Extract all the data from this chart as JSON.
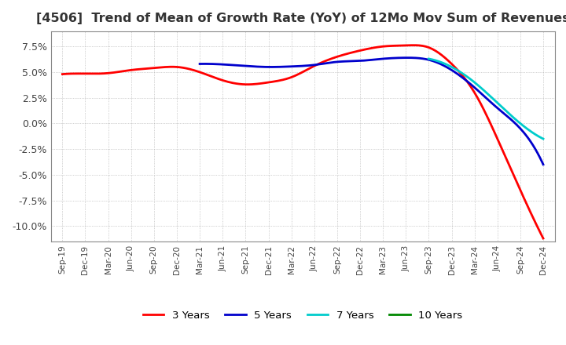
{
  "title": "[4506]  Trend of Mean of Growth Rate (YoY) of 12Mo Mov Sum of Revenues",
  "title_fontsize": 11.5,
  "background_color": "#ffffff",
  "plot_background_color": "#ffffff",
  "grid_color": "#aaaaaa",
  "ylim": [
    -11.5,
    9.0
  ],
  "yticks": [
    7.5,
    5.0,
    2.5,
    0.0,
    -2.5,
    -5.0,
    -7.5,
    -10.0
  ],
  "legend_labels": [
    "3 Years",
    "5 Years",
    "7 Years",
    "10 Years"
  ],
  "legend_colors": [
    "#ff0000",
    "#0000cc",
    "#00cccc",
    "#008800"
  ],
  "x_labels": [
    "Sep-19",
    "Dec-19",
    "Mar-20",
    "Jun-20",
    "Sep-20",
    "Dec-20",
    "Mar-21",
    "Jun-21",
    "Sep-21",
    "Dec-21",
    "Mar-22",
    "Jun-22",
    "Sep-22",
    "Dec-22",
    "Mar-23",
    "Jun-23",
    "Sep-23",
    "Dec-23",
    "Mar-24",
    "Jun-24",
    "Sep-24",
    "Dec-24"
  ],
  "series": {
    "3y": [
      4.8,
      4.85,
      4.9,
      5.2,
      5.4,
      5.5,
      5.0,
      4.2,
      3.8,
      4.0,
      4.5,
      5.6,
      6.5,
      7.1,
      7.5,
      7.6,
      7.4,
      5.8,
      3.0,
      -1.5,
      -6.5,
      -11.2
    ],
    "5y": [
      null,
      null,
      null,
      null,
      null,
      null,
      5.8,
      5.75,
      5.6,
      5.5,
      5.55,
      5.7,
      6.0,
      6.1,
      6.3,
      6.4,
      6.2,
      5.2,
      3.5,
      1.5,
      -0.5,
      -4.0
    ],
    "7y": [
      null,
      null,
      null,
      null,
      null,
      null,
      null,
      null,
      null,
      null,
      null,
      null,
      null,
      null,
      null,
      null,
      6.3,
      5.5,
      4.0,
      2.0,
      0.0,
      -1.5
    ],
    "10y": [
      null,
      null,
      null,
      null,
      null,
      null,
      null,
      null,
      null,
      null,
      null,
      null,
      null,
      null,
      null,
      null,
      null,
      null,
      null,
      null,
      null,
      null
    ]
  }
}
